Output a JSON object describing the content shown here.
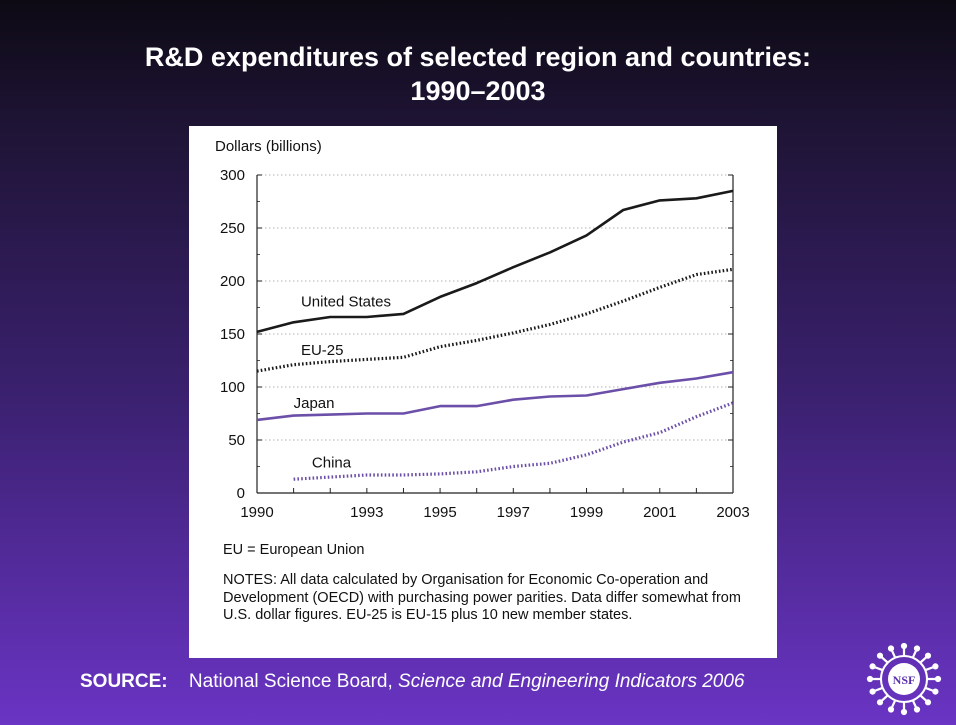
{
  "title": {
    "line1": "R&D expenditures of selected region and countries:",
    "line2": "1990–2003"
  },
  "chart_data": {
    "type": "line",
    "ylabel": "Dollars (billions)",
    "ylim": [
      0,
      300
    ],
    "yticks": [
      0,
      50,
      100,
      150,
      200,
      250,
      300
    ],
    "xlim": [
      1990,
      2003
    ],
    "xticks": [
      1990,
      1993,
      1995,
      1997,
      1999,
      2001,
      2003
    ],
    "grid": "horizontal dotted",
    "series": [
      {
        "name": "United States",
        "style": "solid",
        "color": "#1a1a1a",
        "x": [
          1990,
          1991,
          1992,
          1993,
          1994,
          1995,
          1996,
          1997,
          1998,
          1999,
          2000,
          2001,
          2002,
          2003
        ],
        "y": [
          152,
          161,
          166,
          166,
          169,
          185,
          198,
          213,
          227,
          243,
          267,
          276,
          278,
          285
        ]
      },
      {
        "name": "EU-25",
        "style": "dotted",
        "color": "#1a1a1a",
        "x": [
          1990,
          1991,
          1992,
          1993,
          1994,
          1995,
          1996,
          1997,
          1998,
          1999,
          2000,
          2001,
          2002,
          2003
        ],
        "y": [
          115,
          121,
          124,
          126,
          128,
          138,
          144,
          151,
          159,
          169,
          181,
          194,
          206,
          211
        ]
      },
      {
        "name": "Japan",
        "style": "solid",
        "color": "#6b4fa8",
        "x": [
          1990,
          1991,
          1992,
          1993,
          1994,
          1995,
          1996,
          1997,
          1998,
          1999,
          2000,
          2001,
          2002,
          2003
        ],
        "y": [
          69,
          73,
          74,
          75,
          75,
          82,
          82,
          88,
          91,
          92,
          98,
          104,
          108,
          114
        ]
      },
      {
        "name": "China",
        "style": "dotted",
        "color": "#6b4fa8",
        "x": [
          1991,
          1992,
          1993,
          1994,
          1995,
          1996,
          1997,
          1998,
          1999,
          2000,
          2001,
          2002,
          2003
        ],
        "y": [
          13,
          15,
          17,
          17,
          18,
          20,
          25,
          28,
          36,
          48,
          57,
          72,
          85
        ]
      }
    ]
  },
  "notes": {
    "eu": "EU = European Union",
    "text": "NOTES: All data calculated by Organisation for Economic Co-operation and Development (OECD) with purchasing power parities. Data differ somewhat from U.S. dollar figures. EU-25 is EU-15 plus 10 new member states."
  },
  "source": {
    "label": "SOURCE:",
    "publisher": "National Science Board,",
    "title": "Science and Engineering Indicators 2006"
  },
  "logo": {
    "icon": "nsf-logo",
    "text": "NSF"
  }
}
